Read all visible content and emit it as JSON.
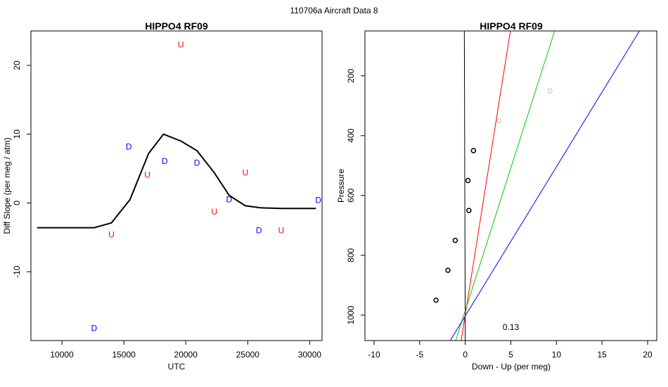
{
  "figure": {
    "suptitle": "110706a   Aircraft Data 8"
  },
  "chart_data": [
    {
      "type": "scatter",
      "title": "HIPPO4 RF09",
      "xlabel": "UTC",
      "ylabel": "Diff Slope (per meg / atm)",
      "xlim": [
        7500,
        31000
      ],
      "ylim": [
        -20,
        25
      ],
      "xticks": [
        10000,
        15000,
        20000,
        25000,
        30000
      ],
      "yticks": [
        -10,
        0,
        10,
        20
      ],
      "grid": false,
      "colors": {
        "D": "#0000ff",
        "U": "#ff0000",
        "line": "#000000"
      },
      "points": [
        {
          "x": 12600,
          "y": -18.2,
          "label": "D"
        },
        {
          "x": 15400,
          "y": 8.2,
          "label": "D"
        },
        {
          "x": 18300,
          "y": 6.1,
          "label": "D"
        },
        {
          "x": 20900,
          "y": 5.8,
          "label": "D"
        },
        {
          "x": 23500,
          "y": 0.5,
          "label": "D"
        },
        {
          "x": 25900,
          "y": -4.0,
          "label": "D"
        },
        {
          "x": 30700,
          "y": 0.4,
          "label": "D"
        },
        {
          "x": 14000,
          "y": -4.6,
          "label": "U"
        },
        {
          "x": 16900,
          "y": 4.1,
          "label": "U"
        },
        {
          "x": 19600,
          "y": 23.0,
          "label": "U"
        },
        {
          "x": 22300,
          "y": -1.3,
          "label": "U"
        },
        {
          "x": 24800,
          "y": 4.4,
          "label": "U"
        },
        {
          "x": 27700,
          "y": -4.0,
          "label": "U"
        }
      ],
      "line": [
        {
          "x": 8000,
          "y": -3.6
        },
        {
          "x": 12600,
          "y": -3.6
        },
        {
          "x": 14000,
          "y": -2.9
        },
        {
          "x": 15500,
          "y": 0.5
        },
        {
          "x": 17000,
          "y": 7.2
        },
        {
          "x": 18200,
          "y": 10.0
        },
        {
          "x": 19600,
          "y": 9.0
        },
        {
          "x": 20900,
          "y": 7.6
        },
        {
          "x": 22300,
          "y": 4.4
        },
        {
          "x": 23500,
          "y": 1.1
        },
        {
          "x": 24800,
          "y": -0.4
        },
        {
          "x": 26000,
          "y": -0.7
        },
        {
          "x": 27700,
          "y": -0.8
        },
        {
          "x": 30500,
          "y": -0.8
        }
      ]
    },
    {
      "type": "scatter",
      "title": "HIPPO4 RF09",
      "xlabel": "Down - Up (per meg)",
      "ylabel": "Pressure",
      "xlim": [
        -11,
        21
      ],
      "ylim": [
        1085,
        50
      ],
      "y_reversed": true,
      "xticks": [
        -10,
        -5,
        0,
        5,
        10,
        15,
        20
      ],
      "yticks": [
        200,
        400,
        600,
        800,
        1000
      ],
      "grid": false,
      "annotation": "0.13",
      "annotation_position": {
        "x": 5,
        "y": 1040
      },
      "colors": {
        "points": "#000000",
        "faded_points": "#bbbbbb"
      },
      "points": [
        {
          "x": -3.2,
          "y": 950
        },
        {
          "x": -1.9,
          "y": 850
        },
        {
          "x": -1.1,
          "y": 750
        },
        {
          "x": 0.4,
          "y": 650
        },
        {
          "x": 0.3,
          "y": 550
        },
        {
          "x": 0.9,
          "y": 450
        }
      ],
      "faded_points": [
        {
          "x": 3.7,
          "y": 350
        },
        {
          "x": 9.3,
          "y": 250
        }
      ],
      "lines": [
        {
          "color": "#000000",
          "x1": 0.0,
          "y1": 1085,
          "x2": -0.1,
          "y2": 50
        },
        {
          "color": "#ff0000",
          "x1": -0.45,
          "y1": 1085,
          "x2": 4.95,
          "y2": 50
        },
        {
          "color": "#00cc00",
          "x1": -1.05,
          "y1": 1085,
          "x2": 9.8,
          "y2": 50
        },
        {
          "color": "#0000ff",
          "x1": -1.65,
          "y1": 1085,
          "x2": 19.1,
          "y2": 50
        }
      ]
    }
  ]
}
